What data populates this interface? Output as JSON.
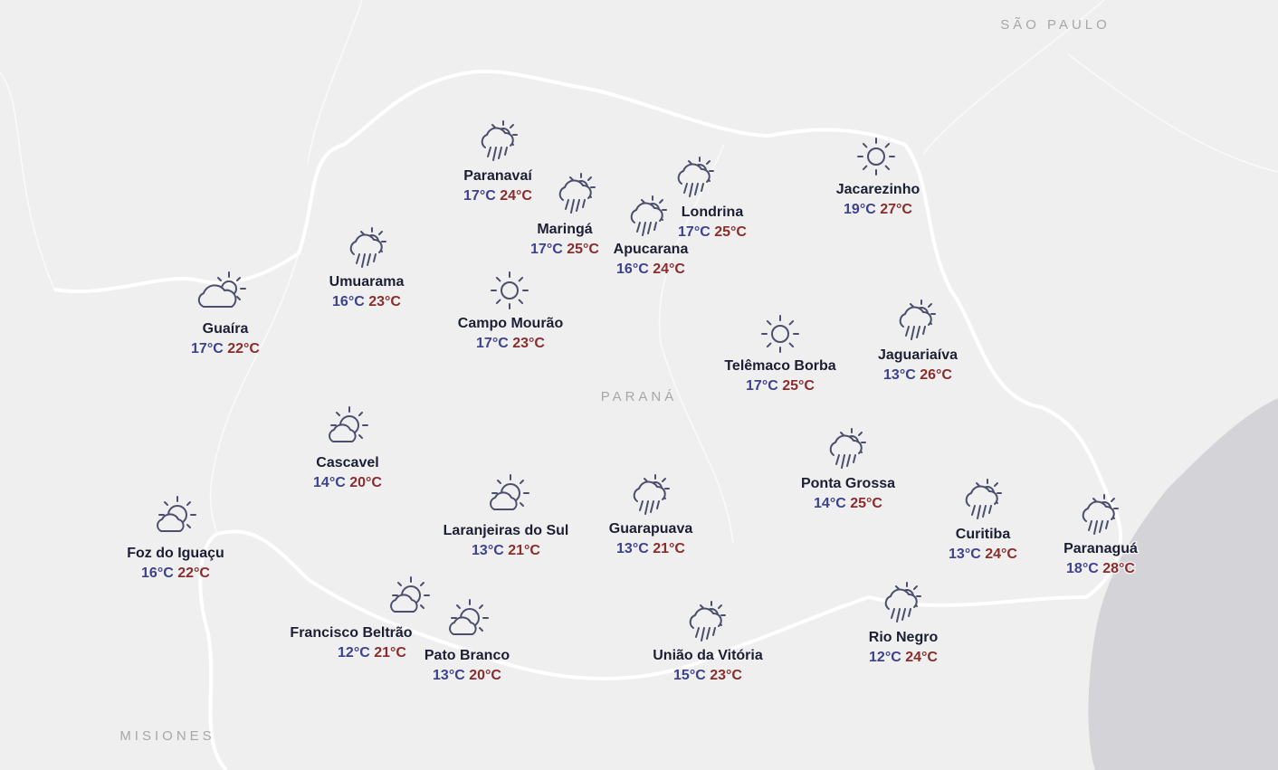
{
  "map": {
    "labels": [
      "SÃO PAULO",
      "PARANÁ",
      "MISIONES"
    ]
  },
  "cities": [
    {
      "name": "Paranavaí",
      "min": "17°C",
      "max": "24°C"
    },
    {
      "name": "Maringá",
      "min": "17°C",
      "max": "25°C"
    },
    {
      "name": "Londrina",
      "min": "17°C",
      "max": "25°C"
    },
    {
      "name": "Apucarana",
      "min": "16°C",
      "max": "24°C"
    },
    {
      "name": "Jacarezinho",
      "min": "19°C",
      "max": "27°C"
    },
    {
      "name": "Umuarama",
      "min": "16°C",
      "max": "23°C"
    },
    {
      "name": "Campo Mourão",
      "min": "17°C",
      "max": "23°C"
    },
    {
      "name": "Guaíra",
      "min": "17°C",
      "max": "22°C"
    },
    {
      "name": "Telêmaco Borba",
      "min": "17°C",
      "max": "25°C"
    },
    {
      "name": "Jaguariaíva",
      "min": "13°C",
      "max": "26°C"
    },
    {
      "name": "Cascavel",
      "min": "14°C",
      "max": "20°C"
    },
    {
      "name": "Ponta Grossa",
      "min": "14°C",
      "max": "25°C"
    },
    {
      "name": "Laranjeiras do Sul",
      "min": "13°C",
      "max": "21°C"
    },
    {
      "name": "Guarapuava",
      "min": "13°C",
      "max": "21°C"
    },
    {
      "name": "Curitiba",
      "min": "13°C",
      "max": "24°C"
    },
    {
      "name": "Paranaguá",
      "min": "18°C",
      "max": "28°C"
    },
    {
      "name": "Foz do Iguaçu",
      "min": "16°C",
      "max": "22°C"
    },
    {
      "name": "Francisco Beltrão",
      "min": "12°C",
      "max": "21°C"
    },
    {
      "name": "Pato Branco",
      "min": "13°C",
      "max": "20°C"
    },
    {
      "name": "União da Vitória",
      "min": "15°C",
      "max": "23°C"
    },
    {
      "name": "Rio Negro",
      "min": "12°C",
      "max": "24°C"
    }
  ]
}
